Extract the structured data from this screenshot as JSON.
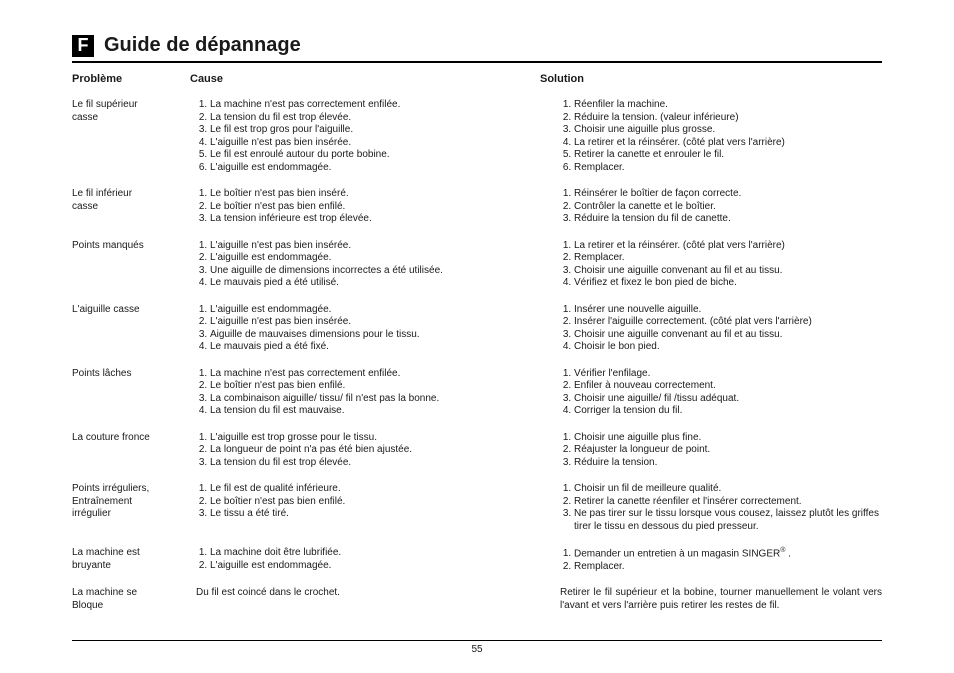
{
  "badge": "F",
  "title": "Guide de dépannage",
  "headers": {
    "problem": "Problème",
    "cause": "Cause",
    "solution": "Solution"
  },
  "page_number": "55",
  "rows": [
    {
      "problem_lines": [
        "Le fil supérieur",
        "casse"
      ],
      "causes": [
        "La machine n'est pas correctement enfilée.",
        "La tension du fil est trop élevée.",
        "Le fil est trop gros pour l'aiguille.",
        "L'aiguille n'est pas bien insérée.",
        "Le fil est enroulé autour du porte bobine.",
        "L'aiguille est endommagée."
      ],
      "solutions": [
        "Réenfiler la machine.",
        "Réduire la tension. (valeur inférieure)",
        "Choisir une aiguille plus grosse.",
        "La retirer et la réinsérer. (côté plat vers l'arrière)",
        "Retirer la canette et enrouler le fil.",
        "Remplacer."
      ]
    },
    {
      "problem_lines": [
        "Le fil inférieur",
        "casse"
      ],
      "causes": [
        "Le boîtier n'est pas bien inséré.",
        "Le boîtier n'est pas bien enfilé.",
        "La tension inférieure est trop élevée."
      ],
      "solutions": [
        "Réinsérer le boîtier de façon correcte.",
        "Contrôler la canette et le boîtier.",
        "Réduire la tension du fil de canette."
      ]
    },
    {
      "problem_lines": [
        "Points manqués"
      ],
      "causes": [
        "L'aiguille n'est pas bien insérée.",
        "L'aiguille est endommagée.",
        "Une aiguille de dimensions incorrectes a été utilisée.",
        "Le mauvais pied a été utilisé."
      ],
      "solutions": [
        "La retirer et la réinsérer. (côté plat vers l'arrière)",
        "Remplacer.",
        "Choisir une aiguille convenant au fil et au tissu.",
        "Vérifiez et fixez le bon pied de biche."
      ]
    },
    {
      "problem_lines": [
        "L'aiguille casse"
      ],
      "causes": [
        "L'aiguille est endommagée.",
        "L'aiguille n'est pas bien insérée.",
        "Aiguille de mauvaises dimensions pour le tissu.",
        "Le mauvais pied a été fixé."
      ],
      "solutions": [
        "Insérer une nouvelle aiguille.",
        "Insérer l'aiguille correctement. (côté plat vers l'arrière)",
        "Choisir une aiguille convenant au fil et au tissu.",
        "Choisir le bon pied."
      ]
    },
    {
      "problem_lines": [
        "Points lâches"
      ],
      "causes": [
        "La machine n'est pas correctement enfilée.",
        "Le boîtier n'est pas bien enfilé.",
        "La combinaison aiguille/ tissu/ fil n'est pas la bonne.",
        "La tension du fil est mauvaise."
      ],
      "solutions": [
        "Vérifier l'enfilage.",
        "Enfiler à nouveau correctement.",
        "Choisir une aiguille/ fil /tissu adéquat.",
        "Corriger la tension du fil."
      ]
    },
    {
      "problem_lines": [
        "La couture fronce"
      ],
      "causes": [
        "L'aiguille est trop grosse pour le tissu.",
        "La longueur de point n'a pas été bien ajustée.",
        "La tension du fil est trop élevée."
      ],
      "solutions": [
        "Choisir une aiguille plus fine.",
        "Réajuster la longueur de point.",
        "Réduire la tension."
      ]
    },
    {
      "problem_lines": [
        "Points irréguliers,",
        "Entraînement",
        "irrégulier"
      ],
      "causes": [
        "Le fil est de qualité inférieure.",
        "Le boîtier n'est pas bien enfilé.",
        "Le tissu a été tiré."
      ],
      "solutions": [
        "Choisir un fil de meilleure qualité.",
        "Retirer la canette réenfiler et l'insérer correctement.",
        "Ne pas tirer sur le tissu lorsque vous cousez, laissez plutôt les griffes tirer le tissu en dessous du pied presseur."
      ]
    },
    {
      "problem_lines": [
        "La machine est",
        "bruyante"
      ],
      "causes": [
        "La machine doit être lubrifiée.",
        "L'aiguille est endommagée."
      ],
      "solutions_html": [
        "Demander un entretien à un magasin SINGER<sup>®</sup> .",
        "Remplacer."
      ]
    },
    {
      "problem_lines": [
        "La machine se",
        "Bloque"
      ],
      "cause_plain": "Du fil est coincé dans le crochet.",
      "solution_plain": "Retirer le fil supérieur et la bobine, tourner manuellement le volant vers l'avant et vers l'arrière puis retirer les restes de fil.",
      "solution_justify": true
    }
  ]
}
